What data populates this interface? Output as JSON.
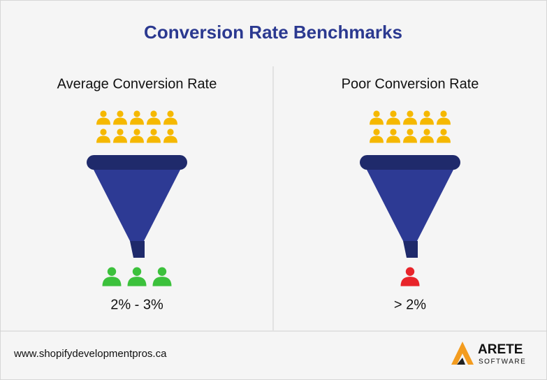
{
  "header": {
    "title": "Conversion Rate Benchmarks"
  },
  "panels": [
    {
      "label": "Average Conversion Rate",
      "rate": "2% - 3%"
    },
    {
      "label": "Poor Conversion Rate",
      "rate": "> 2%"
    }
  ],
  "footer": {
    "url": "www.shopifydevelopmentpros.ca",
    "logo": {
      "name": "ARETE",
      "tagline": "SOFTWARE"
    }
  }
}
